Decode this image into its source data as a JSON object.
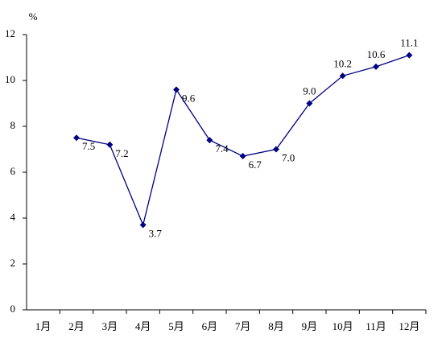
{
  "chart_data": {
    "type": "line",
    "y_label": "%",
    "categories": [
      "1月",
      "2月",
      "3月",
      "4月",
      "5月",
      "6月",
      "7月",
      "8月",
      "9月",
      "10月",
      "11月",
      "12月"
    ],
    "series": [
      {
        "color": "#000080",
        "values": [
          null,
          7.5,
          7.2,
          3.7,
          9.6,
          7.4,
          6.7,
          7.0,
          9.0,
          10.2,
          10.6,
          11.1
        ],
        "value_labels": [
          null,
          "7.5",
          "7.2",
          "3.7",
          "9.6",
          "7.4",
          "6.7",
          "7.0",
          "9.0",
          "10.2",
          "10.6",
          "11.1"
        ]
      }
    ],
    "ylim": [
      0,
      12
    ],
    "yticks": [
      0,
      2,
      4,
      6,
      8,
      10,
      12
    ],
    "grid": false
  }
}
